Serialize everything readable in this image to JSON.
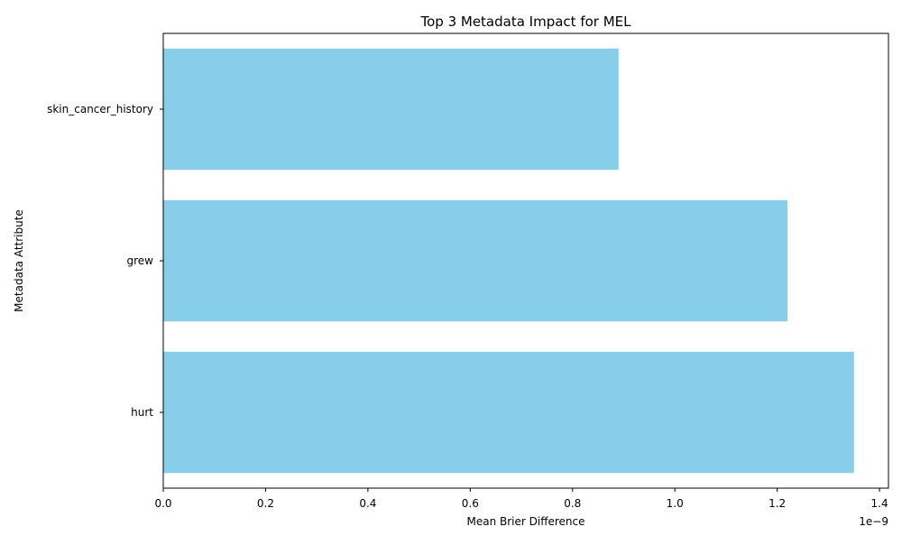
{
  "chart_data": {
    "type": "bar",
    "orientation": "horizontal",
    "title": "Top 3 Metadata Impact for MEL",
    "xlabel": "Mean Brier Difference",
    "ylabel": "Metadata Attribute",
    "x_scale_label": "1e−9",
    "categories": [
      "skin_cancer_history",
      "grew",
      "hurt"
    ],
    "values": [
      0.89,
      1.22,
      1.35
    ],
    "value_multiplier": 1e-09,
    "xlim": [
      0,
      1.4175
    ],
    "x_ticks": [
      "0.0",
      "0.2",
      "0.4",
      "0.6",
      "0.8",
      "1.0",
      "1.2",
      "1.4"
    ],
    "grid": false,
    "bar_color": "#87CEEB"
  }
}
